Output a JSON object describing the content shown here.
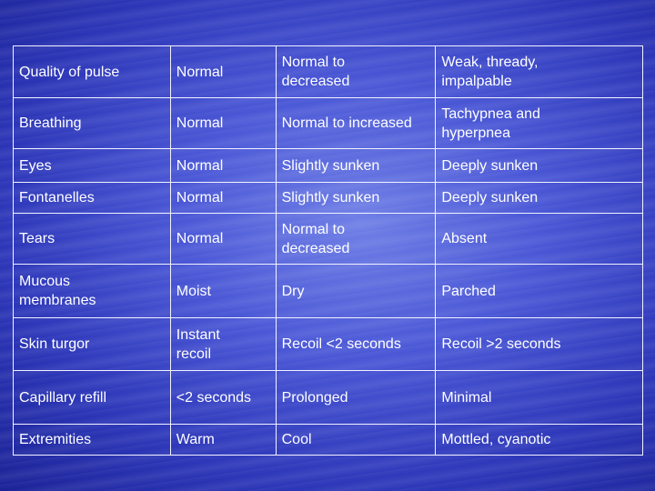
{
  "table": {
    "rows": [
      [
        "Quality of pulse",
        "Normal",
        "Normal to decreased",
        "Weak, thready, impalpable"
      ],
      [
        "Breathing",
        "Normal",
        "Normal to increased",
        "Tachypnea and hyperpnea"
      ],
      [
        "Eyes",
        "Normal",
        "Slightly sunken",
        "Deeply sunken"
      ],
      [
        "Fontanelles",
        "Normal",
        "Slightly sunken",
        "Deeply sunken"
      ],
      [
        "Tears",
        "Normal",
        "Normal to decreased",
        "Absent"
      ],
      [
        "Mucous membranes",
        "Moist",
        "Dry",
        "Parched"
      ],
      [
        "Skin turgor",
        "Instant recoil",
        "Recoil <2 seconds",
        "Recoil >2 seconds"
      ],
      [
        "Capillary refill",
        "<2 seconds",
        "Prolonged",
        "Minimal"
      ],
      [
        "Extremities",
        "Warm",
        "Cool",
        "Mottled, cyanotic"
      ]
    ]
  }
}
